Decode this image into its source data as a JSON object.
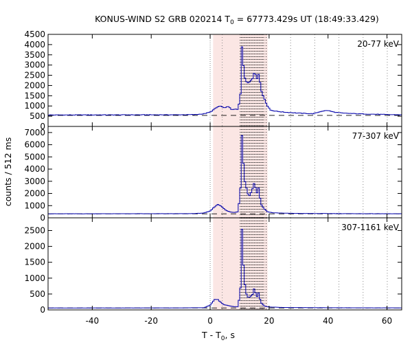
{
  "chart_data": {
    "type": "line",
    "title": {
      "prefix": "KONUS-WIND S2 GRB 020214 T",
      "sub": "0",
      "suffix": " = 67773.429s UT (18:49:33.429)"
    },
    "xlabel": {
      "prefix": "T - T",
      "sub": "0",
      "suffix": ", s"
    },
    "ylabel": "counts / 512 ms",
    "xlim": [
      -55,
      65
    ],
    "x_ticks": [
      -40,
      -20,
      0,
      20,
      40,
      60
    ],
    "x_tick_labels": [
      "-40",
      "-20",
      "0",
      "20",
      "40",
      "60"
    ],
    "highlight_interval": [
      1.0,
      19.5
    ],
    "highlight_color": "#fbe6e4",
    "line_color": "#0000aa",
    "bin_width_s": 0.512,
    "dotted_markers_s": [
      0,
      4.1,
      10.2,
      10.6,
      11.0,
      11.4,
      11.8,
      12.2,
      12.6,
      13.0,
      13.4,
      13.8,
      14.2,
      14.6,
      15.0,
      15.4,
      15.8,
      16.2,
      16.6,
      17.0,
      17.4,
      17.8,
      18.2,
      19.0,
      27.3,
      35.5,
      43.7,
      51.9,
      60.1
    ],
    "panels": [
      {
        "label": "20-77 keV",
        "ylim": [
          0,
          4500
        ],
        "y_ticks": [
          0,
          500,
          1000,
          1500,
          2000,
          2500,
          3000,
          3500,
          4000,
          4500
        ],
        "y_tick_labels": [
          "0",
          "500",
          "1000",
          "1500",
          "2000",
          "2500",
          "3000",
          "3500",
          "4000",
          "4500"
        ],
        "background_level": 540,
        "profile": [
          [
            -55,
            560
          ],
          [
            -10,
            570
          ],
          [
            -5,
            580
          ],
          [
            -2,
            620
          ],
          [
            0,
            700
          ],
          [
            1.5,
            850
          ],
          [
            2.5,
            950
          ],
          [
            3.5,
            1000
          ],
          [
            4.5,
            900
          ],
          [
            5.5,
            950
          ],
          [
            6.5,
            950
          ],
          [
            7.5,
            800
          ],
          [
            8.5,
            850
          ],
          [
            9.5,
            820
          ],
          [
            10.3,
            1600
          ],
          [
            10.8,
            3950
          ],
          [
            11.3,
            3000
          ],
          [
            11.8,
            2400
          ],
          [
            12.3,
            2200
          ],
          [
            12.8,
            2100
          ],
          [
            13.5,
            2200
          ],
          [
            14.5,
            2400
          ],
          [
            15.0,
            2700
          ],
          [
            15.5,
            2500
          ],
          [
            16.0,
            2300
          ],
          [
            16.5,
            2600
          ],
          [
            17.0,
            2100
          ],
          [
            17.5,
            1700
          ],
          [
            18.5,
            1300
          ],
          [
            19.5,
            1000
          ],
          [
            20.5,
            800
          ],
          [
            22,
            750
          ],
          [
            25,
            700
          ],
          [
            30,
            650
          ],
          [
            35,
            620
          ],
          [
            38,
            750
          ],
          [
            40,
            780
          ],
          [
            42,
            700
          ],
          [
            45,
            650
          ],
          [
            50,
            620
          ],
          [
            55,
            600
          ],
          [
            60,
            580
          ],
          [
            65,
            570
          ]
        ]
      },
      {
        "label": "77-307 keV",
        "ylim": [
          0,
          7500
        ],
        "y_ticks": [
          0,
          1000,
          2000,
          3000,
          4000,
          5000,
          6000,
          7000
        ],
        "y_tick_labels": [
          "0",
          "1000",
          "2000",
          "3000",
          "4000",
          "5000",
          "6000",
          "7000"
        ],
        "background_level": 330,
        "profile": [
          [
            -55,
            330
          ],
          [
            -10,
            340
          ],
          [
            -5,
            350
          ],
          [
            -2,
            400
          ],
          [
            0,
            550
          ],
          [
            1.5,
            900
          ],
          [
            2.5,
            1100
          ],
          [
            3.5,
            1000
          ],
          [
            4.5,
            800
          ],
          [
            5.5,
            600
          ],
          [
            6.5,
            500
          ],
          [
            7.5,
            450
          ],
          [
            8.5,
            450
          ],
          [
            9.5,
            500
          ],
          [
            10.3,
            2500
          ],
          [
            10.8,
            6900
          ],
          [
            11.3,
            4500
          ],
          [
            11.8,
            3000
          ],
          [
            12.3,
            2500
          ],
          [
            12.8,
            2000
          ],
          [
            13.5,
            1800
          ],
          [
            14.5,
            2500
          ],
          [
            15.0,
            2900
          ],
          [
            15.5,
            2400
          ],
          [
            16.0,
            2000
          ],
          [
            16.5,
            2500
          ],
          [
            17.0,
            1500
          ],
          [
            17.5,
            1000
          ],
          [
            18.5,
            700
          ],
          [
            19.5,
            500
          ],
          [
            21,
            420
          ],
          [
            25,
            380
          ],
          [
            30,
            360
          ],
          [
            40,
            350
          ],
          [
            50,
            340
          ],
          [
            65,
            330
          ]
        ]
      },
      {
        "label": "307-1161 keV",
        "ylim": [
          0,
          2900
        ],
        "y_ticks": [
          0,
          500,
          1000,
          1500,
          2000,
          2500
        ],
        "y_tick_labels": [
          "0",
          "500",
          "1000",
          "1500",
          "2000",
          "2500"
        ],
        "background_level": 60,
        "profile": [
          [
            -55,
            60
          ],
          [
            -10,
            62
          ],
          [
            -2,
            70
          ],
          [
            0,
            150
          ],
          [
            1.5,
            330
          ],
          [
            2.5,
            330
          ],
          [
            3.5,
            250
          ],
          [
            4.5,
            170
          ],
          [
            5.5,
            150
          ],
          [
            6.5,
            130
          ],
          [
            7.5,
            110
          ],
          [
            8.5,
            100
          ],
          [
            9.5,
            100
          ],
          [
            10.3,
            700
          ],
          [
            10.8,
            2550
          ],
          [
            11.3,
            1400
          ],
          [
            11.8,
            800
          ],
          [
            12.3,
            500
          ],
          [
            12.8,
            400
          ],
          [
            13.5,
            400
          ],
          [
            14.5,
            500
          ],
          [
            15.0,
            700
          ],
          [
            15.5,
            500
          ],
          [
            16.0,
            400
          ],
          [
            16.5,
            550
          ],
          [
            17.0,
            300
          ],
          [
            17.5,
            200
          ],
          [
            18.5,
            120
          ],
          [
            20,
            90
          ],
          [
            25,
            75
          ],
          [
            35,
            70
          ],
          [
            50,
            65
          ],
          [
            65,
            62
          ]
        ]
      }
    ]
  }
}
